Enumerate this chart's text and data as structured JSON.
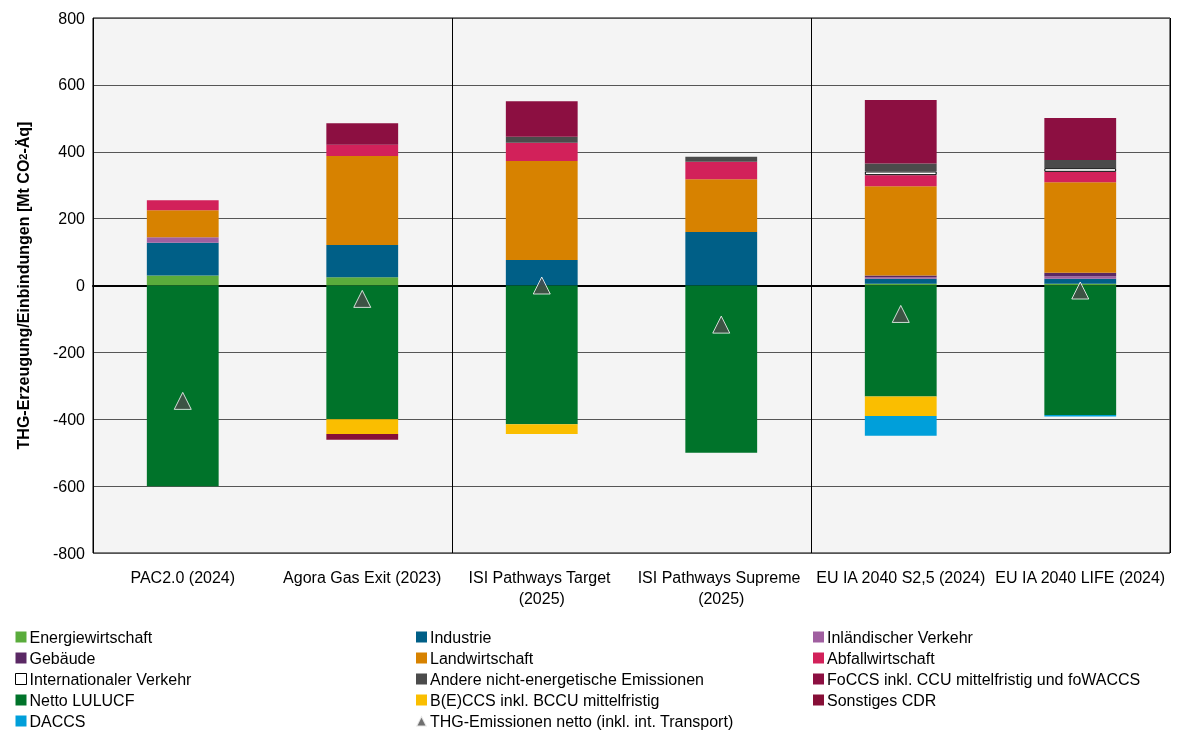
{
  "chart_data": {
    "type": "bar",
    "stacked": true,
    "ylabel": "THG-Erzeugung/Einbindungen [Mt CO$_{2}$-Äq]",
    "categories": [
      "PAC2.0 (2024)",
      "Agora Gas Exit (2023)",
      "ISI Pathways Target (2025)",
      "ISI Pathways Supreme (2025)",
      "EU IA 2040 S2,5 (2024)",
      "EU IA 2040 LIFE (2024)"
    ],
    "ylim": [
      -800,
      800
    ],
    "yticks": [
      -800,
      -600,
      -400,
      -200,
      0,
      200,
      400,
      600,
      800
    ],
    "grid": true,
    "legend": "bottom",
    "series": [
      {
        "name": "Energiewirtschaft",
        "color": "#5aac3c",
        "values": [
          30,
          25,
          null,
          null,
          5,
          5
        ]
      },
      {
        "name": "Industrie",
        "color": "#005f87",
        "values": [
          98,
          96,
          76,
          160,
          15,
          15
        ]
      },
      {
        "name": "Inländischer Verkehr",
        "color": "#a05fa0",
        "values": [
          16,
          null,
          null,
          null,
          5,
          8
        ]
      },
      {
        "name": "Gebäude",
        "color": "#5a2864",
        "values": [
          null,
          null,
          null,
          null,
          5,
          10
        ]
      },
      {
        "name": "Landwirtschaft",
        "color": "#d78200",
        "values": [
          81,
          266,
          296,
          158,
          267,
          271
        ]
      },
      {
        "name": "Abfallwirtschaft",
        "color": "#d2215a",
        "values": [
          30,
          34,
          55,
          52,
          33,
          31
        ]
      },
      {
        "name": "Internationaler Verkehr",
        "color": "#ffffff",
        "values": [
          null,
          null,
          null,
          null,
          11,
          11
        ]
      },
      {
        "name": "Andere nicht-energetische Emissionen",
        "color": "#4b4b4b",
        "values": [
          null,
          null,
          18,
          15,
          24,
          24
        ]
      },
      {
        "name": "FoCCS inkl. CCU mittelfristig und foWACCS",
        "color": "#8c0f41",
        "values": [
          null,
          64,
          106,
          null,
          190,
          126
        ]
      },
      {
        "name": "Netto LULUCF",
        "color": "#00732a",
        "values": [
          -600,
          -400,
          -415,
          -500,
          -332,
          -387
        ]
      },
      {
        "name": "B(E)CCS inkl. BCCU mittelfristig",
        "color": "#fabe00",
        "values": [
          null,
          -44,
          -29,
          null,
          -58,
          null
        ]
      },
      {
        "name": "Sonstiges CDR",
        "color": "#870f37",
        "values": [
          null,
          -17,
          null,
          null,
          null,
          null
        ]
      },
      {
        "name": "DACCS",
        "color": "#009fda",
        "values": [
          null,
          null,
          null,
          null,
          -59,
          -5
        ]
      },
      {
        "name": "THG-Emissionen netto (inkl. int. Transport)",
        "type": "scatter",
        "marker": "triangle",
        "color": "#4b4b4b",
        "x": [
          "PAC2.0 (2024)",
          "Agora Gas Exit (2023)",
          "ISI Pathways Target (2025)",
          "ISI Pathways Supreme (2025)",
          "EU IA 2040 S2,5 (2024)",
          "EU IA 2040 LIFE (2024)"
        ],
        "values": [
          -345,
          -40,
          0,
          -117,
          -85,
          -15
        ]
      }
    ]
  }
}
